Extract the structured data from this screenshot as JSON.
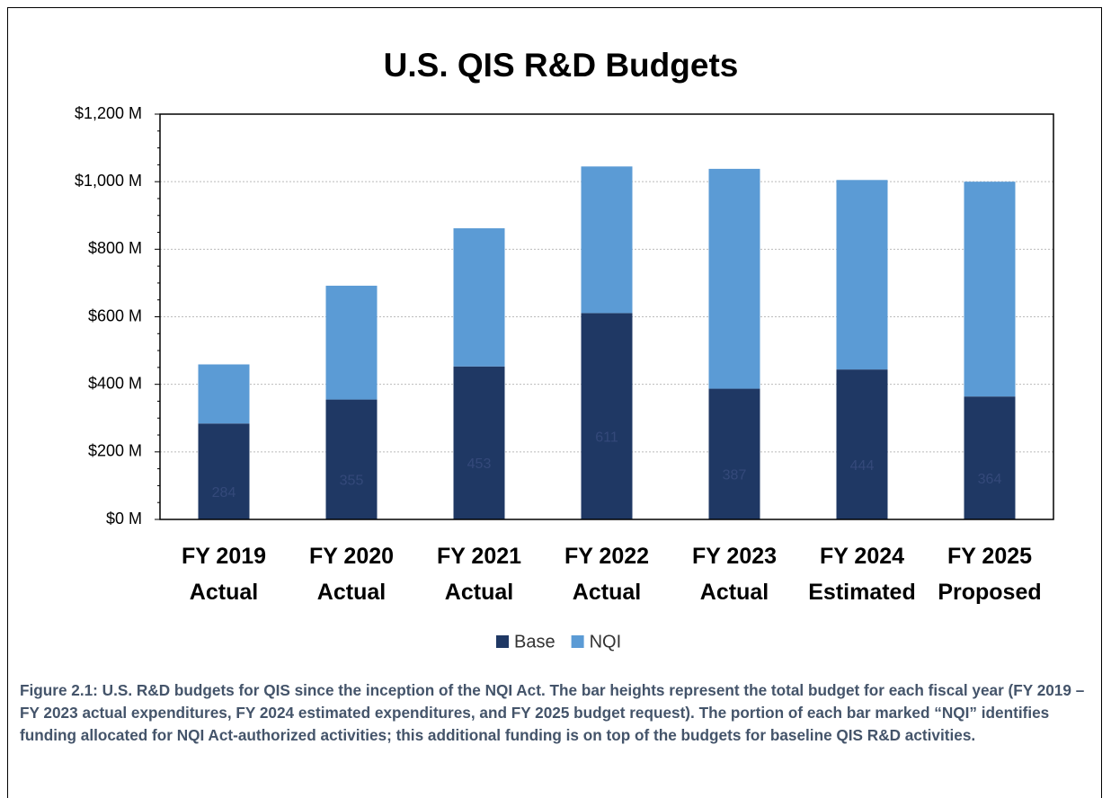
{
  "chart_data": {
    "type": "stacked_bar",
    "title": "U.S. QIS R&D Budgets",
    "categories": [
      [
        "FY 2019",
        "Actual"
      ],
      [
        "FY 2020",
        "Actual"
      ],
      [
        "FY 2021",
        "Actual"
      ],
      [
        "FY 2022",
        "Actual"
      ],
      [
        "FY 2023",
        "Actual"
      ],
      [
        "FY 2024",
        "Estimated"
      ],
      [
        "FY 2025",
        "Proposed"
      ]
    ],
    "series": [
      {
        "name": "Base",
        "color": "#1f3864",
        "values": [
          284,
          355,
          453,
          611,
          387,
          444,
          364
        ]
      },
      {
        "name": "NQI",
        "color": "#5b9bd5",
        "values": [
          175,
          337,
          409,
          434,
          651,
          561,
          636
        ]
      }
    ],
    "ylim": [
      0,
      1200
    ],
    "yticks": [
      {
        "value": 0,
        "label": "$0 M"
      },
      {
        "value": 200,
        "label": "$200 M"
      },
      {
        "value": 400,
        "label": "$400 M"
      },
      {
        "value": 600,
        "label": "$600 M"
      },
      {
        "value": 800,
        "label": "$800 M"
      },
      {
        "value": 1000,
        "label": "$1,000 M"
      },
      {
        "value": 1200,
        "label": "$1,200 M"
      }
    ],
    "grid": true,
    "legend": "bottom"
  },
  "caption": "Figure 2.1: U.S. R&D budgets for QIS since the inception of the NQI Act. The bar heights represent the total budget for each fiscal year (FY 2019 – FY 2023 actual expenditures, FY 2024 estimated expenditures, and FY 2025 budget request). The portion of each bar marked “NQI” identifies funding allocated for NQI Act-authorized activities; this additional funding is on top of the budgets for baseline QIS R&D activities."
}
